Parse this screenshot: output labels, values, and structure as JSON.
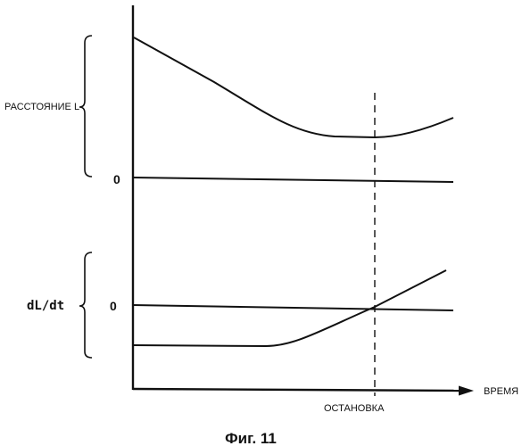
{
  "figure": {
    "distance_label": "РАССТОЯНИЕ L",
    "distance_zero_label": "0",
    "derivative_label": "dL/dt",
    "derivative_zero_label": "0",
    "time_axis_label": "ВРЕМЯ",
    "stop_label": "ОСТАНОВКА",
    "caption": "Фиг. 11"
  },
  "colors": {
    "ink": "#111111",
    "background": "#ffffff"
  }
}
